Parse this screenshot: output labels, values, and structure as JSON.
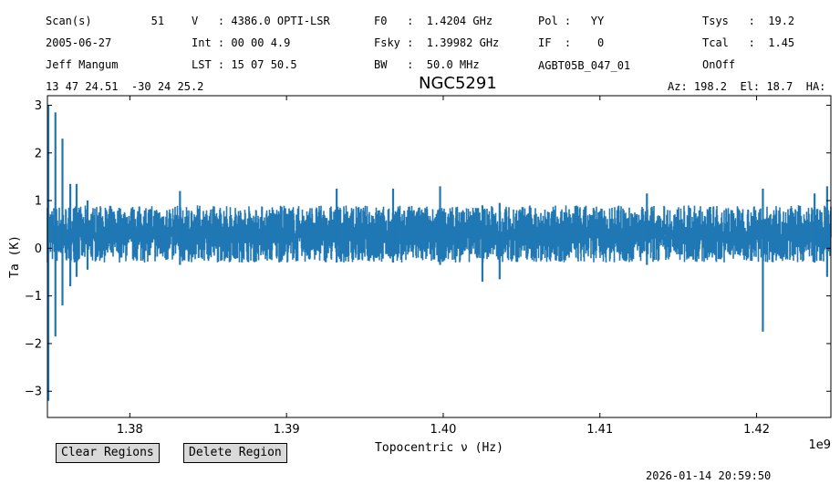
{
  "header": {
    "row1": {
      "scans": "Scan(s)         51",
      "velocity": "V   : 4386.0 OPTI-LSR",
      "f0": "F0   :  1.4204 GHz",
      "pol": "Pol :   YY",
      "tsys": "Tsys   :  19.2"
    },
    "row2": {
      "date": "2005-06-27",
      "int": "Int : 00 00 4.9",
      "fsky": "Fsky :  1.39982 GHz",
      "if": "IF  :    0",
      "tcal": "Tcal   :  1.45"
    },
    "row3": {
      "observer": "Jeff Mangum",
      "lst": "LST : 15 07 50.5",
      "bw": "BW   :  50.0 MHz",
      "project": "AGBT05B_047_01",
      "procedure": "OnOff"
    },
    "coords": "13 47 24.51  -30 24 25.2",
    "source": "NGC5291",
    "azel": "Az: 198.2  El: 18.7  HA:"
  },
  "buttons": {
    "clear": "Clear Regions",
    "delete": "Delete Region"
  },
  "timestamp": "2026-01-14 20:59:50",
  "chart_data": {
    "type": "line",
    "title": "NGC5291",
    "xlabel": "Topocentric ν (Hz)",
    "ylabel": "Ta (K)",
    "x_scale_label": "1e9",
    "xlim": [
      1374740000.0,
      1424740000.0
    ],
    "ylim": [
      -3.55,
      3.2
    ],
    "xticks": [
      1380000000.0,
      1390000000.0,
      1400000000.0,
      1410000000.0,
      1420000000.0
    ],
    "xtick_labels": [
      "1.38",
      "1.39",
      "1.40",
      "1.41",
      "1.42"
    ],
    "yticks": [
      -3,
      -2,
      -1,
      0,
      1,
      2,
      3
    ],
    "ytick_labels": [
      "−3",
      "−2",
      "−1",
      "0",
      "1",
      "2",
      "3"
    ],
    "color": "#1f77b4",
    "grid": false,
    "baseline_mean": 0.25,
    "noise_band": [
      -0.3,
      0.9
    ],
    "features": [
      {
        "x": 1374800000.0,
        "min": -3.2,
        "max": 3.0
      },
      {
        "x": 1375250000.0,
        "min": -1.85,
        "max": 2.85
      },
      {
        "x": 1375700000.0,
        "min": -1.2,
        "max": 2.3
      },
      {
        "x": 1376200000.0,
        "min": -0.8,
        "max": 1.35
      },
      {
        "x": 1376600000.0,
        "min": -0.6,
        "max": 1.35
      },
      {
        "x": 1377300000.0,
        "min": -0.45,
        "max": 1.0
      },
      {
        "x": 1383200000.0,
        "min": -0.35,
        "max": 1.2
      },
      {
        "x": 1393200000.0,
        "min": -0.3,
        "max": 1.25
      },
      {
        "x": 1396800000.0,
        "min": -0.3,
        "max": 1.25
      },
      {
        "x": 1399800000.0,
        "min": -0.35,
        "max": 1.3
      },
      {
        "x": 1402500000.0,
        "min": -0.7,
        "max": 0.9
      },
      {
        "x": 1403600000.0,
        "min": -0.65,
        "max": 0.95
      },
      {
        "x": 1413000000.0,
        "min": -0.35,
        "max": 1.15
      },
      {
        "x": 1420400000.0,
        "min": -1.75,
        "max": 1.25
      },
      {
        "x": 1423700000.0,
        "min": -0.3,
        "max": 1.15
      },
      {
        "x": 1424500000.0,
        "min": -0.6,
        "max": 1.3
      }
    ]
  }
}
